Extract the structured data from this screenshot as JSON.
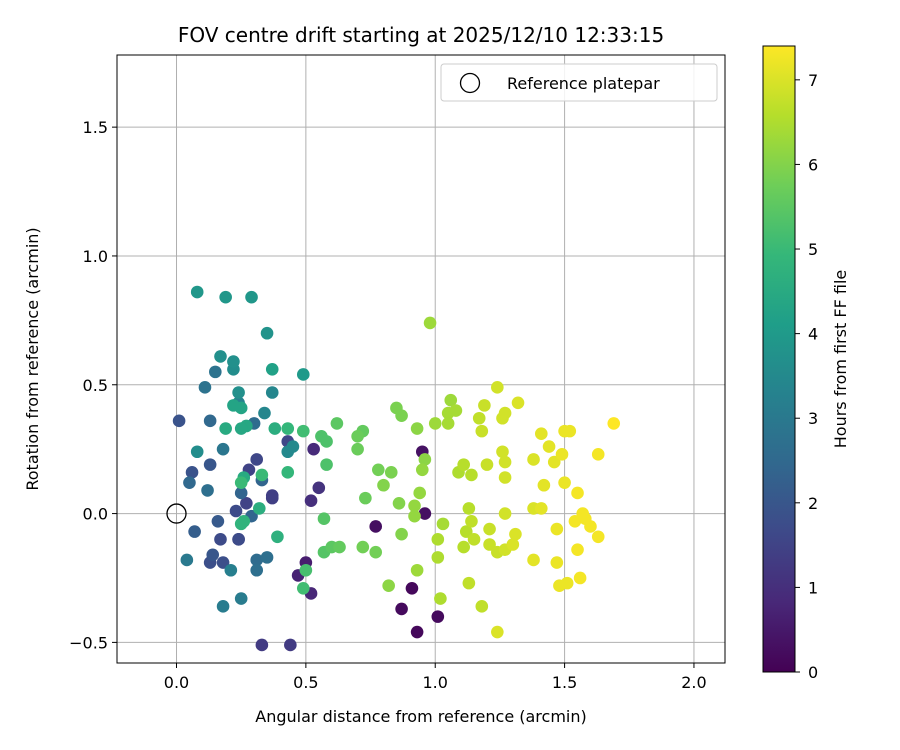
{
  "chart_data": {
    "type": "scatter",
    "title": "FOV centre drift starting at 2025/12/10 12:33:15",
    "xlabel": "Angular distance from reference (arcmin)",
    "ylabel": "Rotation from reference (arcmin)",
    "xlim": [
      -0.23,
      2.12
    ],
    "ylim": [
      -0.58,
      1.78
    ],
    "xticks": [
      0.0,
      0.5,
      1.0,
      1.5,
      2.0
    ],
    "xtick_labels": [
      "0.0",
      "0.5",
      "1.0",
      "1.5",
      "2.0"
    ],
    "yticks": [
      -0.5,
      0.0,
      0.5,
      1.0,
      1.5
    ],
    "ytick_labels": [
      "−0.5",
      "0.0",
      "0.5",
      "1.0",
      "1.5"
    ],
    "grid": true,
    "legend": {
      "position": "top-right",
      "label": "Reference platepar"
    },
    "reference_point": {
      "x": 0.0,
      "y": 0.0
    },
    "colorbar": {
      "label": "Hours from first FF file",
      "range": [
        0,
        7.4
      ],
      "ticks": [
        0,
        1,
        2,
        3,
        4,
        5,
        6,
        7
      ],
      "tick_labels": [
        "0",
        "1",
        "2",
        "3",
        "4",
        "5",
        "6",
        "7"
      ],
      "colormap": [
        "#440154",
        "#482878",
        "#3e4989",
        "#31688e",
        "#26828e",
        "#1f9e89",
        "#35b779",
        "#6ece58",
        "#b5de2b",
        "#fde725"
      ]
    },
    "points": [
      {
        "x": 0.91,
        "y": -0.29,
        "c": 0.15
      },
      {
        "x": 0.93,
        "y": -0.46,
        "c": 0.15
      },
      {
        "x": 1.01,
        "y": -0.4,
        "c": 0.2
      },
      {
        "x": 0.87,
        "y": -0.37,
        "c": 0.2
      },
      {
        "x": 0.96,
        "y": 0.0,
        "c": 0.3
      },
      {
        "x": 0.77,
        "y": -0.05,
        "c": 0.3
      },
      {
        "x": 0.95,
        "y": 0.24,
        "c": 0.35
      },
      {
        "x": 0.5,
        "y": -0.19,
        "c": 0.6
      },
      {
        "x": 0.47,
        "y": -0.24,
        "c": 0.7
      },
      {
        "x": 0.52,
        "y": -0.31,
        "c": 0.8
      },
      {
        "x": 0.53,
        "y": 0.25,
        "c": 0.9
      },
      {
        "x": 0.52,
        "y": 0.05,
        "c": 1.0
      },
      {
        "x": 0.55,
        "y": 0.1,
        "c": 1.1
      },
      {
        "x": 0.33,
        "y": -0.51,
        "c": 1.3
      },
      {
        "x": 0.44,
        "y": -0.51,
        "c": 1.3
      },
      {
        "x": 0.24,
        "y": -0.1,
        "c": 1.3
      },
      {
        "x": 0.37,
        "y": 0.06,
        "c": 1.4
      },
      {
        "x": 0.37,
        "y": 0.07,
        "c": 1.4
      },
      {
        "x": 0.27,
        "y": 0.04,
        "c": 1.5
      },
      {
        "x": 0.28,
        "y": 0.17,
        "c": 1.5
      },
      {
        "x": 0.31,
        "y": 0.21,
        "c": 1.6
      },
      {
        "x": 0.43,
        "y": 0.28,
        "c": 1.6
      },
      {
        "x": 0.17,
        "y": -0.1,
        "c": 1.7
      },
      {
        "x": 0.24,
        "y": -0.1,
        "c": 1.7
      },
      {
        "x": 0.23,
        "y": 0.01,
        "c": 1.7
      },
      {
        "x": 0.18,
        "y": -0.19,
        "c": 1.8
      },
      {
        "x": 0.13,
        "y": -0.19,
        "c": 1.8
      },
      {
        "x": 0.06,
        "y": 0.16,
        "c": 1.9
      },
      {
        "x": 0.01,
        "y": 0.36,
        "c": 1.9
      },
      {
        "x": 0.14,
        "y": -0.16,
        "c": 2.0
      },
      {
        "x": 0.13,
        "y": 0.19,
        "c": 2.0
      },
      {
        "x": 0.16,
        "y": -0.03,
        "c": 2.1
      },
      {
        "x": 0.07,
        "y": -0.07,
        "c": 2.2
      },
      {
        "x": 0.29,
        "y": -0.01,
        "c": 2.4
      },
      {
        "x": 0.33,
        "y": 0.13,
        "c": 2.4
      },
      {
        "x": 0.25,
        "y": 0.08,
        "c": 2.4
      },
      {
        "x": 0.05,
        "y": 0.12,
        "c": 2.5
      },
      {
        "x": 0.13,
        "y": 0.36,
        "c": 2.5
      },
      {
        "x": 0.3,
        "y": 0.35,
        "c": 2.6
      },
      {
        "x": 0.31,
        "y": -0.18,
        "c": 2.6
      },
      {
        "x": 0.35,
        "y": -0.17,
        "c": 2.7
      },
      {
        "x": 0.31,
        "y": -0.22,
        "c": 2.7
      },
      {
        "x": 0.12,
        "y": 0.09,
        "c": 2.7
      },
      {
        "x": 0.11,
        "y": 0.49,
        "c": 2.8
      },
      {
        "x": 0.15,
        "y": 0.55,
        "c": 2.8
      },
      {
        "x": 0.18,
        "y": 0.25,
        "c": 2.9
      },
      {
        "x": 0.04,
        "y": -0.18,
        "c": 3.0
      },
      {
        "x": 0.18,
        "y": -0.36,
        "c": 3.1
      },
      {
        "x": 0.25,
        "y": -0.33,
        "c": 3.1
      },
      {
        "x": 0.21,
        "y": -0.22,
        "c": 3.2
      },
      {
        "x": 0.24,
        "y": 0.43,
        "c": 3.3
      },
      {
        "x": 0.34,
        "y": 0.39,
        "c": 3.4
      },
      {
        "x": 0.37,
        "y": 0.47,
        "c": 3.4
      },
      {
        "x": 0.43,
        "y": 0.24,
        "c": 3.5
      },
      {
        "x": 0.45,
        "y": 0.26,
        "c": 3.5
      },
      {
        "x": 0.08,
        "y": 0.24,
        "c": 3.6
      },
      {
        "x": 0.22,
        "y": 0.56,
        "c": 3.6
      },
      {
        "x": 0.17,
        "y": 0.61,
        "c": 3.7
      },
      {
        "x": 0.22,
        "y": 0.59,
        "c": 3.7
      },
      {
        "x": 0.24,
        "y": 0.47,
        "c": 3.7
      },
      {
        "x": 0.35,
        "y": 0.7,
        "c": 3.8
      },
      {
        "x": 0.08,
        "y": 0.86,
        "c": 3.9
      },
      {
        "x": 0.19,
        "y": 0.84,
        "c": 3.9
      },
      {
        "x": 0.29,
        "y": 0.84,
        "c": 3.9
      },
      {
        "x": 0.49,
        "y": 0.54,
        "c": 4.0
      },
      {
        "x": 0.37,
        "y": 0.56,
        "c": 4.2
      },
      {
        "x": 0.22,
        "y": 0.42,
        "c": 4.3
      },
      {
        "x": 0.25,
        "y": 0.41,
        "c": 4.3
      },
      {
        "x": 0.27,
        "y": 0.34,
        "c": 4.4
      },
      {
        "x": 0.25,
        "y": 0.33,
        "c": 4.4
      },
      {
        "x": 0.19,
        "y": 0.33,
        "c": 4.5
      },
      {
        "x": 0.26,
        "y": 0.14,
        "c": 4.5
      },
      {
        "x": 0.32,
        "y": 0.02,
        "c": 4.6
      },
      {
        "x": 0.38,
        "y": 0.33,
        "c": 4.6
      },
      {
        "x": 0.39,
        "y": -0.09,
        "c": 4.7
      },
      {
        "x": 0.26,
        "y": -0.03,
        "c": 4.8
      },
      {
        "x": 0.25,
        "y": -0.04,
        "c": 4.8
      },
      {
        "x": 0.43,
        "y": 0.33,
        "c": 4.9
      },
      {
        "x": 0.43,
        "y": 0.16,
        "c": 4.9
      },
      {
        "x": 0.25,
        "y": 0.12,
        "c": 5.0
      },
      {
        "x": 0.33,
        "y": 0.15,
        "c": 5.0
      },
      {
        "x": 0.49,
        "y": 0.32,
        "c": 5.1
      },
      {
        "x": 0.49,
        "y": -0.29,
        "c": 5.1
      },
      {
        "x": 0.5,
        "y": -0.22,
        "c": 5.2
      },
      {
        "x": 0.56,
        "y": 0.3,
        "c": 5.3
      },
      {
        "x": 0.58,
        "y": 0.28,
        "c": 5.3
      },
      {
        "x": 0.58,
        "y": 0.19,
        "c": 5.3
      },
      {
        "x": 0.57,
        "y": -0.02,
        "c": 5.4
      },
      {
        "x": 0.57,
        "y": -0.15,
        "c": 5.4
      },
      {
        "x": 0.62,
        "y": 0.35,
        "c": 5.5
      },
      {
        "x": 0.6,
        "y": -0.13,
        "c": 5.5
      },
      {
        "x": 0.63,
        "y": -0.13,
        "c": 5.6
      },
      {
        "x": 0.72,
        "y": 0.32,
        "c": 5.6
      },
      {
        "x": 0.7,
        "y": 0.3,
        "c": 5.7
      },
      {
        "x": 0.7,
        "y": 0.25,
        "c": 5.7
      },
      {
        "x": 0.73,
        "y": 0.06,
        "c": 5.7
      },
      {
        "x": 0.72,
        "y": -0.13,
        "c": 5.8
      },
      {
        "x": 0.77,
        "y": -0.15,
        "c": 5.8
      },
      {
        "x": 0.78,
        "y": 0.17,
        "c": 5.8
      },
      {
        "x": 0.85,
        "y": 0.41,
        "c": 5.9
      },
      {
        "x": 0.87,
        "y": 0.38,
        "c": 5.9
      },
      {
        "x": 0.83,
        "y": 0.16,
        "c": 5.9
      },
      {
        "x": 0.8,
        "y": 0.11,
        "c": 6.0
      },
      {
        "x": 0.86,
        "y": 0.04,
        "c": 6.0
      },
      {
        "x": 0.87,
        "y": -0.08,
        "c": 6.0
      },
      {
        "x": 0.82,
        "y": -0.28,
        "c": 6.1
      },
      {
        "x": 0.93,
        "y": 0.33,
        "c": 6.1
      },
      {
        "x": 0.96,
        "y": 0.21,
        "c": 6.1
      },
      {
        "x": 0.95,
        "y": 0.17,
        "c": 6.2
      },
      {
        "x": 0.94,
        "y": 0.08,
        "c": 6.2
      },
      {
        "x": 0.92,
        "y": 0.03,
        "c": 6.2
      },
      {
        "x": 0.92,
        "y": -0.01,
        "c": 6.2
      },
      {
        "x": 0.93,
        "y": -0.22,
        "c": 6.3
      },
      {
        "x": 0.98,
        "y": 0.74,
        "c": 6.3
      },
      {
        "x": 1.0,
        "y": 0.35,
        "c": 6.3
      },
      {
        "x": 1.06,
        "y": 0.44,
        "c": 6.3
      },
      {
        "x": 1.05,
        "y": 0.39,
        "c": 6.4
      },
      {
        "x": 1.08,
        "y": 0.4,
        "c": 6.4
      },
      {
        "x": 1.05,
        "y": 0.35,
        "c": 6.4
      },
      {
        "x": 1.03,
        "y": -0.04,
        "c": 6.4
      },
      {
        "x": 1.01,
        "y": -0.1,
        "c": 6.5
      },
      {
        "x": 1.01,
        "y": -0.17,
        "c": 6.5
      },
      {
        "x": 1.02,
        "y": -0.33,
        "c": 6.5
      },
      {
        "x": 1.09,
        "y": 0.16,
        "c": 6.5
      },
      {
        "x": 1.11,
        "y": 0.19,
        "c": 6.6
      },
      {
        "x": 1.14,
        "y": 0.15,
        "c": 6.6
      },
      {
        "x": 1.11,
        "y": -0.13,
        "c": 6.6
      },
      {
        "x": 1.12,
        "y": -0.07,
        "c": 6.6
      },
      {
        "x": 1.13,
        "y": 0.02,
        "c": 6.6
      },
      {
        "x": 1.14,
        "y": -0.03,
        "c": 6.7
      },
      {
        "x": 1.15,
        "y": -0.1,
        "c": 6.7
      },
      {
        "x": 1.13,
        "y": -0.27,
        "c": 6.7
      },
      {
        "x": 1.18,
        "y": -0.36,
        "c": 6.7
      },
      {
        "x": 1.17,
        "y": 0.37,
        "c": 6.7
      },
      {
        "x": 1.18,
        "y": 0.32,
        "c": 6.8
      },
      {
        "x": 1.19,
        "y": 0.42,
        "c": 6.8
      },
      {
        "x": 1.2,
        "y": 0.19,
        "c": 6.8
      },
      {
        "x": 1.21,
        "y": -0.06,
        "c": 6.8
      },
      {
        "x": 1.21,
        "y": -0.12,
        "c": 6.8
      },
      {
        "x": 1.24,
        "y": -0.15,
        "c": 6.8
      },
      {
        "x": 1.24,
        "y": 0.49,
        "c": 6.9
      },
      {
        "x": 1.26,
        "y": 0.37,
        "c": 6.9
      },
      {
        "x": 1.27,
        "y": 0.39,
        "c": 6.9
      },
      {
        "x": 1.26,
        "y": 0.24,
        "c": 6.9
      },
      {
        "x": 1.27,
        "y": 0.2,
        "c": 6.9
      },
      {
        "x": 1.27,
        "y": 0.14,
        "c": 6.9
      },
      {
        "x": 1.27,
        "y": 0.0,
        "c": 6.9
      },
      {
        "x": 1.27,
        "y": -0.14,
        "c": 6.9
      },
      {
        "x": 1.24,
        "y": -0.46,
        "c": 7.0
      },
      {
        "x": 1.31,
        "y": -0.08,
        "c": 7.0
      },
      {
        "x": 1.3,
        "y": -0.12,
        "c": 7.0
      },
      {
        "x": 1.32,
        "y": 0.43,
        "c": 7.0
      },
      {
        "x": 1.38,
        "y": 0.21,
        "c": 7.0
      },
      {
        "x": 1.38,
        "y": 0.02,
        "c": 7.0
      },
      {
        "x": 1.38,
        "y": -0.18,
        "c": 7.1
      },
      {
        "x": 1.41,
        "y": 0.31,
        "c": 7.1
      },
      {
        "x": 1.42,
        "y": 0.11,
        "c": 7.1
      },
      {
        "x": 1.41,
        "y": 0.02,
        "c": 7.1
      },
      {
        "x": 1.44,
        "y": 0.26,
        "c": 7.1
      },
      {
        "x": 1.46,
        "y": 0.2,
        "c": 7.1
      },
      {
        "x": 1.47,
        "y": -0.06,
        "c": 7.2
      },
      {
        "x": 1.47,
        "y": -0.19,
        "c": 7.2
      },
      {
        "x": 1.48,
        "y": -0.28,
        "c": 7.2
      },
      {
        "x": 1.49,
        "y": 0.23,
        "c": 7.2
      },
      {
        "x": 1.5,
        "y": 0.32,
        "c": 7.2
      },
      {
        "x": 1.52,
        "y": 0.32,
        "c": 7.2
      },
      {
        "x": 1.5,
        "y": 0.12,
        "c": 7.2
      },
      {
        "x": 1.51,
        "y": -0.27,
        "c": 7.2
      },
      {
        "x": 1.55,
        "y": 0.08,
        "c": 7.3
      },
      {
        "x": 1.54,
        "y": -0.03,
        "c": 7.3
      },
      {
        "x": 1.57,
        "y": 0.0,
        "c": 7.3
      },
      {
        "x": 1.58,
        "y": -0.02,
        "c": 7.3
      },
      {
        "x": 1.55,
        "y": -0.14,
        "c": 7.3
      },
      {
        "x": 1.56,
        "y": -0.25,
        "c": 7.3
      },
      {
        "x": 1.6,
        "y": -0.05,
        "c": 7.3
      },
      {
        "x": 1.63,
        "y": -0.09,
        "c": 7.3
      },
      {
        "x": 1.63,
        "y": 0.23,
        "c": 7.3
      },
      {
        "x": 1.69,
        "y": 0.35,
        "c": 7.4
      }
    ]
  }
}
